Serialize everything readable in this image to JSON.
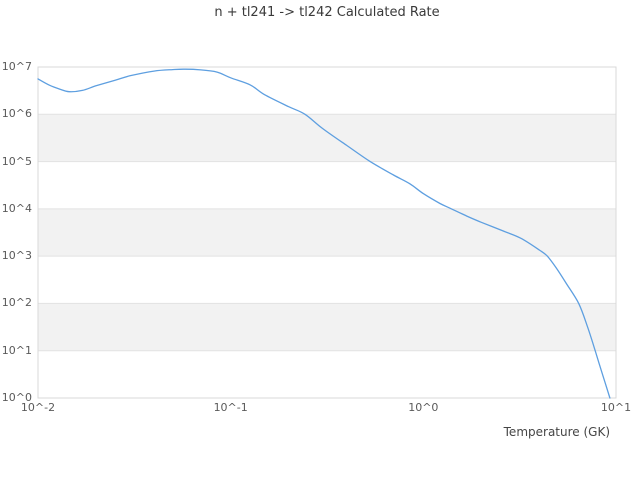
{
  "page": {
    "background": "#ffffff"
  },
  "chart_data": {
    "type": "line",
    "title": "n + tl241 -> tl242 Calculated Rate",
    "xlabel": "Temperature (GK)",
    "ylabel": "",
    "x_scale": "log",
    "y_scale": "log",
    "xlim": [
      0.01,
      10
    ],
    "ylim": [
      1,
      10000000
    ],
    "grid": "horizontal decade lines with alternating shaded bands",
    "legend_position": "none",
    "x_ticks": [
      {
        "label": "10^-2",
        "value": 0.01
      },
      {
        "label": "10^-1",
        "value": 0.1
      },
      {
        "label": "10^0",
        "value": 1
      },
      {
        "label": "10^1",
        "value": 10
      }
    ],
    "y_ticks": [
      {
        "label": "10^0",
        "value": 1
      },
      {
        "label": "10^1",
        "value": 10
      },
      {
        "label": "10^2",
        "value": 100
      },
      {
        "label": "10^3",
        "value": 1000
      },
      {
        "label": "10^4",
        "value": 10000
      },
      {
        "label": "10^5",
        "value": 100000
      },
      {
        "label": "10^6",
        "value": 1000000
      },
      {
        "label": "10^7",
        "value": 10000000
      }
    ],
    "shaded_bands": [
      {
        "y_from": 100000,
        "y_to": 1000000
      },
      {
        "y_from": 1000,
        "y_to": 10000
      },
      {
        "y_from": 10,
        "y_to": 100
      }
    ],
    "series": [
      {
        "name": "calculated-rate",
        "color": "#5e9fe0",
        "points": [
          [
            0.01,
            5600000
          ],
          [
            0.0115,
            4100000
          ],
          [
            0.013,
            3400000
          ],
          [
            0.0145,
            3000000
          ],
          [
            0.017,
            3200000
          ],
          [
            0.02,
            4000000
          ],
          [
            0.025,
            5200000
          ],
          [
            0.03,
            6500000
          ],
          [
            0.04,
            8200000
          ],
          [
            0.05,
            8800000
          ],
          [
            0.058,
            9000000
          ],
          [
            0.07,
            8700000
          ],
          [
            0.085,
            7800000
          ],
          [
            0.1,
            5900000
          ],
          [
            0.126,
            4200000
          ],
          [
            0.15,
            2600000
          ],
          [
            0.2,
            1450000
          ],
          [
            0.243,
            1000000
          ],
          [
            0.3,
            500000
          ],
          [
            0.4,
            220000
          ],
          [
            0.53,
            100000
          ],
          [
            0.7,
            52000
          ],
          [
            0.85,
            34000
          ],
          [
            1.0,
            21000
          ],
          [
            1.22,
            13000
          ],
          [
            1.4,
            10000
          ],
          [
            1.7,
            6900
          ],
          [
            2.0,
            5200
          ],
          [
            2.6,
            3400
          ],
          [
            3.2,
            2400
          ],
          [
            4.0,
            1350
          ],
          [
            4.4,
            1000
          ],
          [
            4.9,
            560
          ],
          [
            5.5,
            270
          ],
          [
            6.4,
            100
          ],
          [
            7.1,
            33
          ],
          [
            7.8,
            10
          ],
          [
            8.5,
            3.2
          ],
          [
            9.3,
            1.0
          ]
        ]
      }
    ],
    "colors": {
      "line": "#5e9fe0",
      "band": "#f2f2f2",
      "gridline": "#e2e2e2",
      "border": "#d9d9d9",
      "title_text": "#3a3a3a",
      "tick_text": "#5a5a5a",
      "axis_label_text": "#454545"
    }
  }
}
